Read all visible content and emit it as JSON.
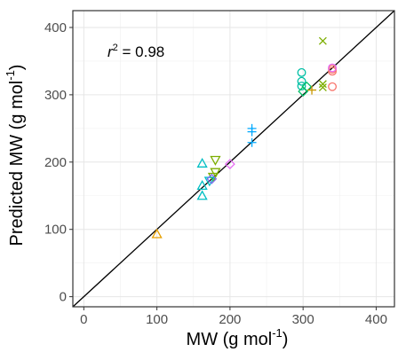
{
  "chart_data": {
    "type": "scatter",
    "title": "",
    "xlabel": "MW (g mol",
    "xlabel_sup": "-1",
    "xlabel_end": ")",
    "ylabel": "Predicted MW (g mol",
    "ylabel_sup": "-1",
    "ylabel_end": ")",
    "xlim": [
      -15,
      425
    ],
    "ylim": [
      -15,
      425
    ],
    "x_ticks": [
      0,
      100,
      200,
      300,
      400
    ],
    "y_ticks": [
      0,
      100,
      200,
      300,
      400
    ],
    "grid": true,
    "reference_line": {
      "type": "identity",
      "color": "#000000"
    },
    "annotation": {
      "r_symbol": "r",
      "r_sup": "2",
      "text": " = 0.98"
    },
    "series": [
      {
        "marker": "triangle-up",
        "color": "#E69F00",
        "points": [
          [
            100,
            93
          ]
        ]
      },
      {
        "marker": "triangle-up",
        "color": "#00BFC4",
        "points": [
          [
            162,
            198
          ],
          [
            162,
            165
          ],
          [
            162,
            150
          ]
        ]
      },
      {
        "marker": "triangle-down",
        "color": "#7CAE00",
        "points": [
          [
            180,
            203
          ],
          [
            180,
            185
          ],
          [
            177,
            178
          ]
        ]
      },
      {
        "marker": "triangle-down",
        "color": "#00BFC4",
        "points": [
          [
            172,
            172
          ]
        ]
      },
      {
        "marker": "diamond",
        "color": "#7B68EE",
        "points": [
          [
            175,
            175
          ]
        ]
      },
      {
        "marker": "diamond",
        "color": "#E76BF3",
        "points": [
          [
            200,
            197
          ]
        ]
      },
      {
        "marker": "plus",
        "color": "#00A9FF",
        "points": [
          [
            230,
            250
          ],
          [
            230,
            245
          ],
          [
            230,
            229
          ]
        ]
      },
      {
        "marker": "circle",
        "color": "#00BFA5",
        "points": [
          [
            298,
            333
          ],
          [
            298,
            320
          ],
          [
            298,
            313
          ]
        ]
      },
      {
        "marker": "diamond",
        "color": "#00BE67",
        "points": [
          [
            300,
            305
          ],
          [
            305,
            312
          ]
        ]
      },
      {
        "marker": "plus",
        "color": "#C99800",
        "points": [
          [
            312,
            307
          ]
        ]
      },
      {
        "marker": "cross",
        "color": "#7CAE00",
        "points": [
          [
            327,
            380
          ],
          [
            327,
            316
          ],
          [
            327,
            311
          ]
        ]
      },
      {
        "marker": "circle",
        "color": "#F8766D",
        "points": [
          [
            340,
            338
          ],
          [
            340,
            335
          ],
          [
            340,
            312
          ]
        ]
      },
      {
        "marker": "circle",
        "color": "#E76BF3",
        "points": [
          [
            340,
            340
          ]
        ]
      }
    ]
  }
}
